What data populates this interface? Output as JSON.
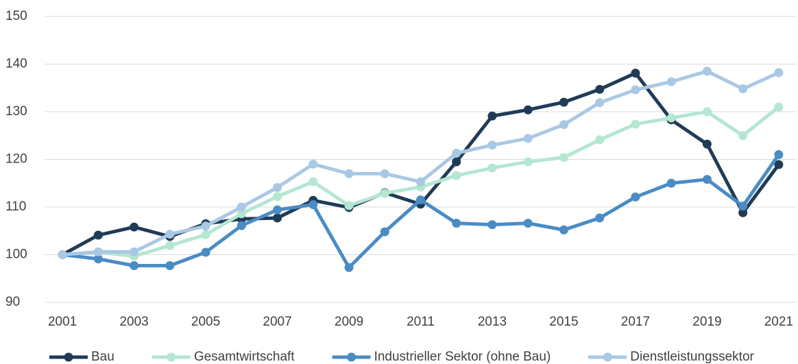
{
  "chart_data": {
    "type": "line",
    "categories": [
      "2001",
      null,
      "2003",
      null,
      "2005",
      null,
      "2007",
      null,
      "2009",
      null,
      "2011",
      null,
      "2013",
      null,
      "2015",
      null,
      "2017",
      null,
      "2019",
      null,
      "2021"
    ],
    "series": [
      {
        "name": "Bau",
        "color": "#1f3b57",
        "values": [
          100,
          104.1,
          105.8,
          103.8,
          106.5,
          107.5,
          107.7,
          111.4,
          109.9,
          113.0,
          110.6,
          119.5,
          129.1,
          130.4,
          132.0,
          134.7,
          138.1,
          128.3,
          123.2,
          108.8,
          118.9
        ]
      },
      {
        "name": "Gesamtwirtschaft",
        "color": "#b4e6d2",
        "values": [
          100,
          100.5,
          99.7,
          101.9,
          104.2,
          108.6,
          112.2,
          115.3,
          110.3,
          112.9,
          114.2,
          116.6,
          118.2,
          119.5,
          120.4,
          124.1,
          127.4,
          128.7,
          130.0,
          125.0,
          131.0
        ]
      },
      {
        "name": "Industrieller Sektor (ohne Bau)",
        "color": "#4a8cc4",
        "values": [
          100,
          99.1,
          97.7,
          97.7,
          100.5,
          106.1,
          109.4,
          110.5,
          97.3,
          104.8,
          111.5,
          106.6,
          106.3,
          106.6,
          105.2,
          107.7,
          112.1,
          115.0,
          115.8,
          110.2,
          121.0
        ]
      },
      {
        "name": "Dienstleistungssektor",
        "color": "#a9c8e4",
        "values": [
          100,
          100.6,
          100.6,
          104.3,
          106.0,
          110.0,
          114.1,
          119.0,
          117.0,
          117.0,
          115.3,
          121.3,
          123.0,
          124.4,
          127.3,
          131.9,
          134.6,
          136.3,
          138.5,
          134.8,
          138.2
        ]
      }
    ],
    "ylim": [
      90,
      150
    ],
    "yticks": [
      90,
      100,
      110,
      120,
      130,
      140,
      150
    ],
    "grid": true,
    "legend": "bottom"
  }
}
